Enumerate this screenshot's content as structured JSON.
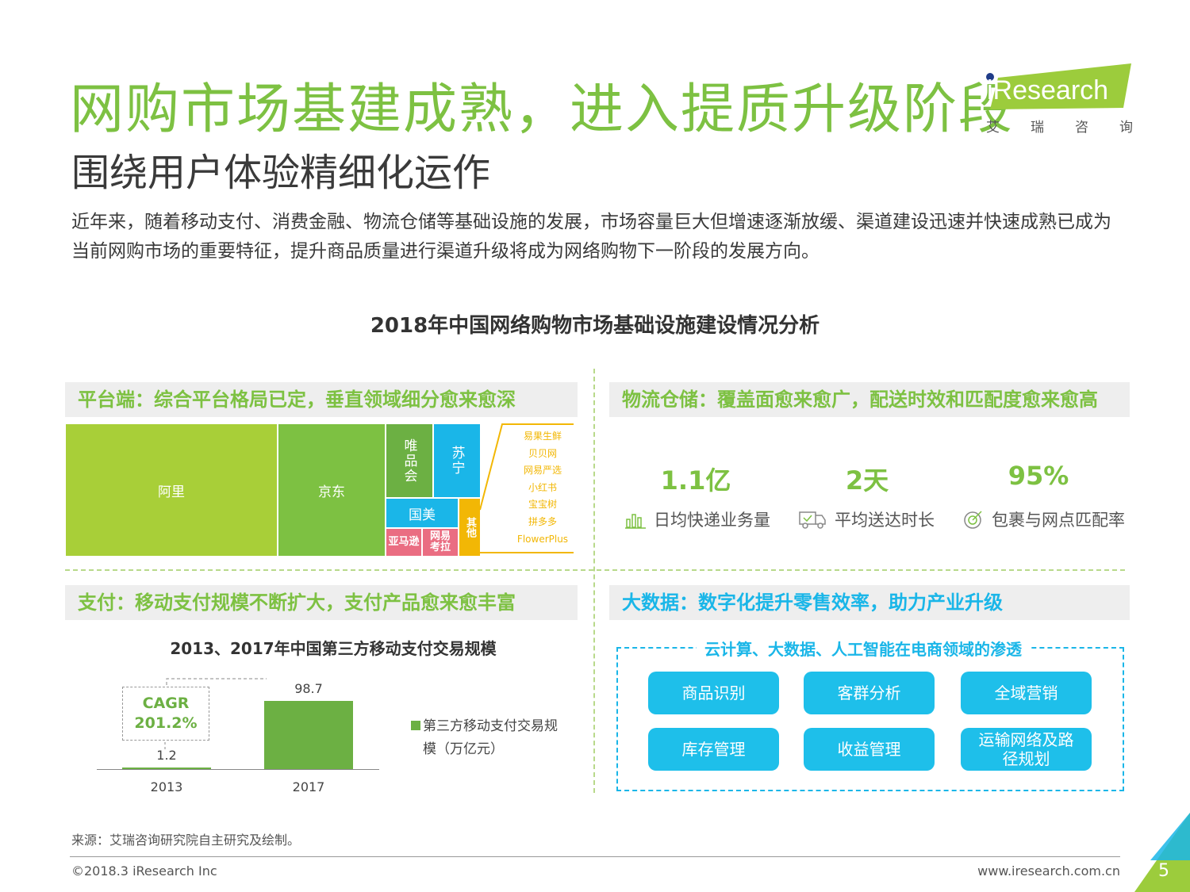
{
  "header": {
    "title": "网购市场基建成熟，进入提质升级阶段",
    "subtitle": "围绕用户体验精细化运作",
    "intro": "近年来，随着移动支付、消费金融、物流仓储等基础设施的发展，市场容量巨大但增速逐渐放缓、渠道建设迅速并快速成熟已成为当前网购市场的重要特征，提升商品质量进行渠道升级将成为网络购物下一阶段的发展方向。"
  },
  "logo": {
    "brand": "iResearch",
    "chinese": [
      "艾",
      "瑞",
      "咨",
      "询"
    ]
  },
  "chart_title": "2018年中国网络购物市场基础设施建设情况分析",
  "platform": {
    "heading": "平台端：综合平台格局已定，垂直领域细分愈来愈深",
    "blocks": {
      "ali": "阿里",
      "jd": "京东",
      "vip": "唯品会",
      "suning": "苏宁",
      "gome": "国美",
      "amazon": "亚马逊",
      "netease_kaola": "网易考拉",
      "others": "其他"
    },
    "others_list": [
      "易果生鲜",
      "贝贝网",
      "网易严选",
      "小红书",
      "宝宝树",
      "拼多多",
      "FlowerPlus"
    ]
  },
  "logistics": {
    "heading": "物流仓储：覆盖面愈来愈广，配送时效和匹配度愈来愈高",
    "stats": [
      {
        "value": "1.1亿",
        "label": "日均快递业务量",
        "icon": "bar-chart-icon"
      },
      {
        "value": "2天",
        "label": "平均送达时长",
        "icon": "delivery-truck-icon"
      },
      {
        "value": "95%",
        "label": "包裹与网点匹配率",
        "icon": "target-icon"
      }
    ]
  },
  "payment": {
    "heading": "支付：移动支付规模不断扩大，支付产品愈来愈丰富",
    "cagr_label": "CAGR",
    "cagr_value": "201.2%",
    "legend": "第三方移动支付交易规模（万亿元）",
    "colors": {
      "bar": "#6cb043"
    }
  },
  "chart_data": {
    "type": "bar",
    "title": "2013、2017年中国第三方移动支付交易规模",
    "categories": [
      "2013",
      "2017"
    ],
    "series": [
      {
        "name": "第三方移动支付交易规模（万亿元）",
        "values": [
          1.2,
          98.7
        ]
      }
    ],
    "data_labels": [
      "1.2",
      "98.7"
    ],
    "annotation": "CAGR 201.2%"
  },
  "bigdata": {
    "heading": "大数据：数字化提升零售效率，助力产业升级",
    "caption": "云计算、大数据、人工智能在电商领域的渗透",
    "items": [
      "商品识别",
      "客群分析",
      "全域营销",
      "库存管理",
      "收益管理",
      "运输网络及路径规划"
    ]
  },
  "footer": {
    "source": "来源：艾瑞咨询研究院自主研究及绘制。",
    "copyright": "©2018.3 iResearch Inc",
    "website": "www.iresearch.com.cn",
    "page": "5"
  },
  "colors": {
    "green": "#7dc142",
    "blue": "#1ab6e8",
    "treemap_green": "#a8cf38",
    "treemap_darkgreen": "#6cb043",
    "treemap_blue": "#1ab6e8",
    "treemap_pink": "#ea6d82",
    "treemap_yellow": "#f2b705"
  }
}
